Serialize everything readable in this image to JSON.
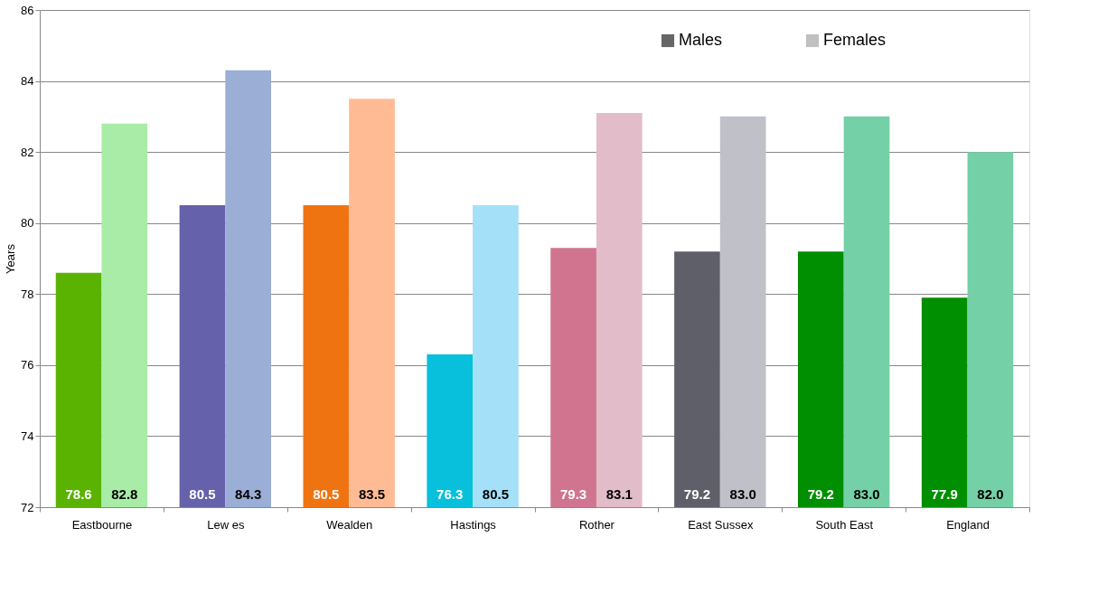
{
  "chart_data": {
    "type": "bar",
    "ylabel": "Years",
    "categories": [
      "Eastbourne",
      "Lew es",
      "Wealden",
      "Hastings",
      "Rother",
      "East Sussex",
      "South East",
      "England"
    ],
    "series": [
      {
        "name": "Males",
        "color": "#666666",
        "colors": [
          "#5ab300",
          "#6661ab",
          "#f07311",
          "#08c0dc",
          "#d07490",
          "#5f5f6a",
          "#008f00",
          "#008f00"
        ],
        "values": [
          78.6,
          80.5,
          80.5,
          76.3,
          79.3,
          79.2,
          79.2,
          77.9
        ],
        "value_labels": [
          "78.6",
          "80.5",
          "80.5",
          "76.3",
          "79.3",
          "79.2",
          "79.2",
          "77.9"
        ]
      },
      {
        "name": "Females",
        "color": "#c0c0c0",
        "colors": [
          "#a8eca8",
          "#9aaed6",
          "#ffbb94",
          "#a4e0f8",
          "#e2bcc8",
          "#bfc0c8",
          "#74d0a6",
          "#74d0a6"
        ],
        "values": [
          82.8,
          84.3,
          83.5,
          80.5,
          83.1,
          83.0,
          83.0,
          82.0
        ],
        "value_labels": [
          "82.8",
          "84.3",
          "83.5",
          "80.5",
          "83.1",
          "83.0",
          "83.0",
          "82.0"
        ]
      }
    ],
    "ylim": [
      72,
      86
    ],
    "yticks": [
      72,
      74,
      76,
      78,
      80,
      82,
      84,
      86
    ],
    "grid": "y",
    "legend": "top right"
  }
}
